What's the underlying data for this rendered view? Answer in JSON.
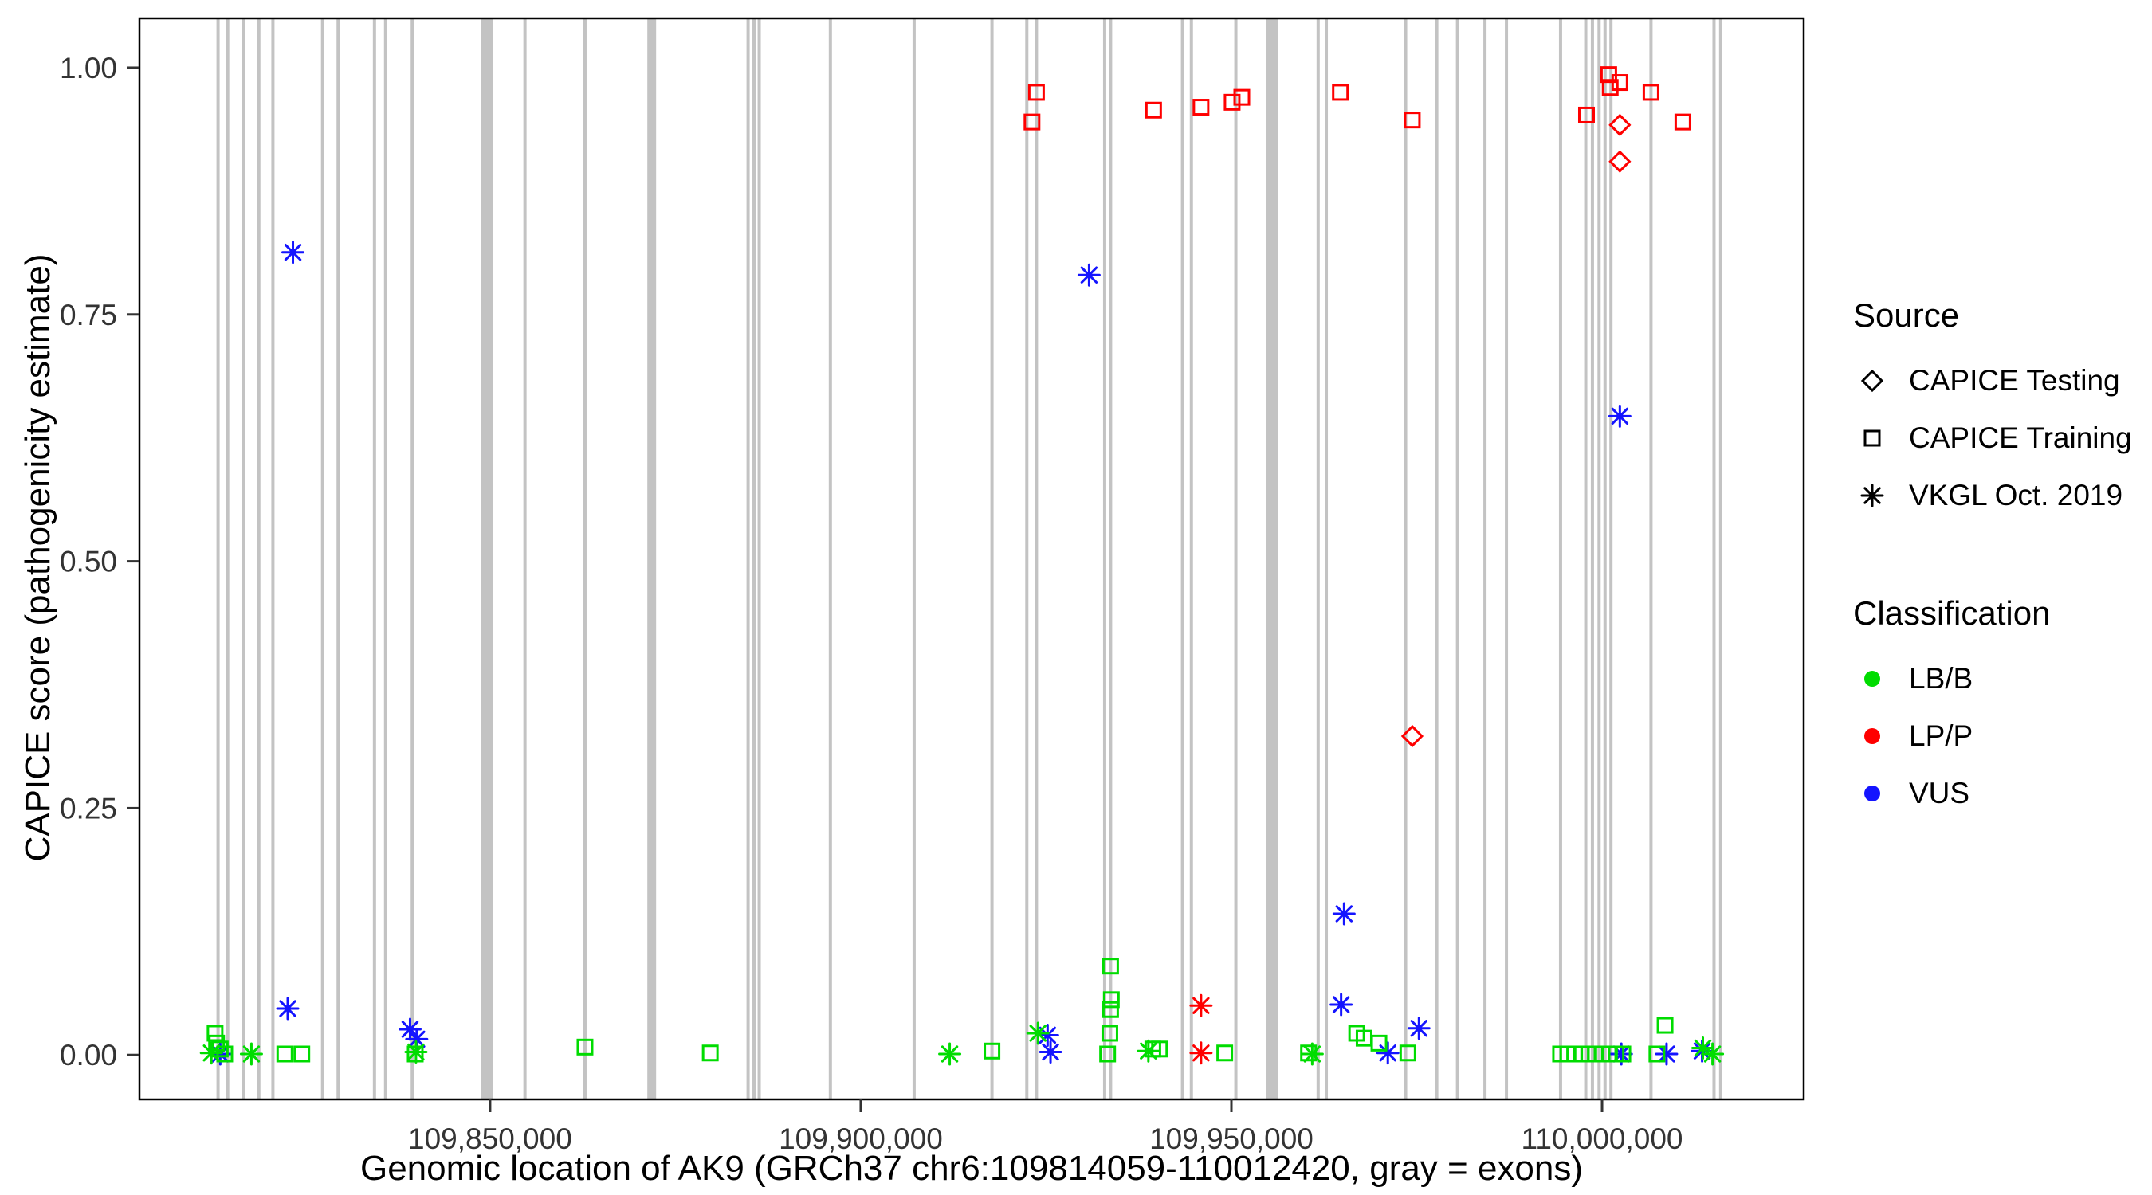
{
  "chart_data": {
    "type": "scatter",
    "title": "",
    "xlabel": "Genomic location of AK9 (GRCh37 chr6:109814059-110012420, gray = exons)",
    "ylabel": "CAPICE score (pathogenicity estimate)",
    "x_domain": [
      109802700,
      110027200
    ],
    "y_domain": [
      -0.045,
      1.05
    ],
    "grid": false,
    "legend_position": "right",
    "x_ticks": [
      {
        "value": 109850000,
        "label": "109,850,000"
      },
      {
        "value": 109900000,
        "label": "109,900,000"
      },
      {
        "value": 109950000,
        "label": "109,950,000"
      },
      {
        "value": 110000000,
        "label": "110,000,000"
      }
    ],
    "y_ticks": [
      {
        "value": 0.0,
        "label": "0.00"
      },
      {
        "value": 0.25,
        "label": "0.25"
      },
      {
        "value": 0.5,
        "label": "0.50"
      },
      {
        "value": 0.75,
        "label": "0.75"
      },
      {
        "value": 1.0,
        "label": "1.00"
      }
    ],
    "exon_color": "#C3C3C3",
    "class_colors": {
      "LB/B": "#00DC00",
      "LP/P": "#FF0000",
      "VUS": "#1414FF"
    },
    "exons": [
      [
        109813300,
        4
      ],
      [
        109814600,
        4
      ],
      [
        109816700,
        4
      ],
      [
        109818800,
        4
      ],
      [
        109820700,
        4
      ],
      [
        109827400,
        4
      ],
      [
        109829500,
        4
      ],
      [
        109834400,
        4
      ],
      [
        109835900,
        4
      ],
      [
        109839500,
        4
      ],
      [
        109849600,
        15
      ],
      [
        109854700,
        4
      ],
      [
        109862800,
        4
      ],
      [
        109871800,
        11
      ],
      [
        109884800,
        4
      ],
      [
        109885600,
        4
      ],
      [
        109886300,
        4
      ],
      [
        109895900,
        4
      ],
      [
        109907200,
        4
      ],
      [
        109917700,
        4
      ],
      [
        109922400,
        4
      ],
      [
        109923700,
        4
      ],
      [
        109932900,
        4
      ],
      [
        109933700,
        4
      ],
      [
        109943400,
        4
      ],
      [
        109944600,
        4
      ],
      [
        109950600,
        4
      ],
      [
        109955500,
        15
      ],
      [
        109961700,
        4
      ],
      [
        109962800,
        4
      ],
      [
        109973500,
        4
      ],
      [
        109977700,
        4
      ],
      [
        109980500,
        4
      ],
      [
        109984200,
        4
      ],
      [
        109987100,
        4
      ],
      [
        109994400,
        4
      ],
      [
        109997800,
        4
      ],
      [
        109998700,
        4
      ],
      [
        109999600,
        4
      ],
      [
        110000400,
        4
      ],
      [
        110001200,
        4
      ],
      [
        110006600,
        4
      ],
      [
        110015100,
        4
      ],
      [
        110016000,
        4
      ]
    ],
    "points": [
      [
        109923700,
        0.975,
        "square",
        "LP/P"
      ],
      [
        109923100,
        0.945,
        "square",
        "LP/P"
      ],
      [
        109939500,
        0.957,
        "square",
        "LP/P"
      ],
      [
        109945900,
        0.96,
        "square",
        "LP/P"
      ],
      [
        109950100,
        0.965,
        "square",
        "LP/P"
      ],
      [
        109951400,
        0.97,
        "square",
        "LP/P"
      ],
      [
        109964700,
        0.975,
        "square",
        "LP/P"
      ],
      [
        109974400,
        0.947,
        "square",
        "LP/P"
      ],
      [
        109997900,
        0.952,
        "square",
        "LP/P"
      ],
      [
        110000900,
        0.993,
        "square",
        "LP/P"
      ],
      [
        110001100,
        0.98,
        "square",
        "LP/P"
      ],
      [
        110002400,
        0.985,
        "square",
        "LP/P"
      ],
      [
        110006600,
        0.975,
        "square",
        "LP/P"
      ],
      [
        110010900,
        0.945,
        "square",
        "LP/P"
      ],
      [
        110002400,
        0.942,
        "diamond",
        "LP/P"
      ],
      [
        110002400,
        0.905,
        "diamond",
        "LP/P"
      ],
      [
        109974400,
        0.323,
        "diamond",
        "LP/P"
      ],
      [
        109945900,
        0.05,
        "asterisk",
        "LP/P"
      ],
      [
        109945900,
        0.002,
        "asterisk",
        "LP/P"
      ],
      [
        109823400,
        0.813,
        "asterisk",
        "VUS"
      ],
      [
        109930800,
        0.79,
        "asterisk",
        "VUS"
      ],
      [
        110002400,
        0.647,
        "asterisk",
        "VUS"
      ],
      [
        109822700,
        0.047,
        "asterisk",
        "VUS"
      ],
      [
        109839200,
        0.026,
        "asterisk",
        "VUS"
      ],
      [
        109840100,
        0.016,
        "asterisk",
        "VUS"
      ],
      [
        109925200,
        0.02,
        "asterisk",
        "VUS"
      ],
      [
        109925600,
        0.003,
        "asterisk",
        "VUS"
      ],
      [
        109965200,
        0.143,
        "asterisk",
        "VUS"
      ],
      [
        109964800,
        0.051,
        "asterisk",
        "VUS"
      ],
      [
        109975300,
        0.027,
        "asterisk",
        "VUS"
      ],
      [
        109971100,
        0.002,
        "asterisk",
        "VUS"
      ],
      [
        110002600,
        0.001,
        "asterisk",
        "VUS"
      ],
      [
        110008700,
        0.001,
        "asterisk",
        "VUS"
      ],
      [
        110013500,
        0.004,
        "asterisk",
        "VUS"
      ],
      [
        109813600,
        0.001,
        "asterisk",
        "VUS"
      ],
      [
        109812900,
        0.022,
        "square",
        "LB/B"
      ],
      [
        109813100,
        0.012,
        "square",
        "LB/B"
      ],
      [
        109813600,
        0.006,
        "square",
        "LB/B"
      ],
      [
        109814200,
        0.001,
        "square",
        "LB/B"
      ],
      [
        109822300,
        0.001,
        "square",
        "LB/B"
      ],
      [
        109824600,
        0.001,
        "square",
        "LB/B"
      ],
      [
        109839900,
        0.001,
        "square",
        "LB/B"
      ],
      [
        109862800,
        0.008,
        "square",
        "LB/B"
      ],
      [
        109879700,
        0.002,
        "square",
        "LB/B"
      ],
      [
        109917700,
        0.004,
        "square",
        "LB/B"
      ],
      [
        109933700,
        0.09,
        "square",
        "LB/B"
      ],
      [
        109933800,
        0.056,
        "square",
        "LB/B"
      ],
      [
        109933700,
        0.046,
        "square",
        "LB/B"
      ],
      [
        109933600,
        0.022,
        "square",
        "LB/B"
      ],
      [
        109933300,
        0.001,
        "square",
        "LB/B"
      ],
      [
        109939400,
        0.006,
        "square",
        "LB/B"
      ],
      [
        109940300,
        0.006,
        "square",
        "LB/B"
      ],
      [
        109949100,
        0.002,
        "square",
        "LB/B"
      ],
      [
        109960400,
        0.002,
        "square",
        "LB/B"
      ],
      [
        109966900,
        0.022,
        "square",
        "LB/B"
      ],
      [
        109967900,
        0.017,
        "square",
        "LB/B"
      ],
      [
        109969900,
        0.012,
        "square",
        "LB/B"
      ],
      [
        109973800,
        0.002,
        "square",
        "LB/B"
      ],
      [
        109994400,
        0.001,
        "square",
        "LB/B"
      ],
      [
        109995400,
        0.001,
        "square",
        "LB/B"
      ],
      [
        109996300,
        0.001,
        "square",
        "LB/B"
      ],
      [
        109997200,
        0.001,
        "square",
        "LB/B"
      ],
      [
        109998200,
        0.001,
        "square",
        "LB/B"
      ],
      [
        109999100,
        0.001,
        "square",
        "LB/B"
      ],
      [
        110000000,
        0.001,
        "square",
        "LB/B"
      ],
      [
        110001000,
        0.001,
        "square",
        "LB/B"
      ],
      [
        110001900,
        0.001,
        "square",
        "LB/B"
      ],
      [
        110002800,
        0.001,
        "square",
        "LB/B"
      ],
      [
        110008500,
        0.03,
        "square",
        "LB/B"
      ],
      [
        110007400,
        0.001,
        "square",
        "LB/B"
      ],
      [
        109812400,
        0.002,
        "asterisk",
        "LB/B"
      ],
      [
        109817800,
        0.001,
        "asterisk",
        "LB/B"
      ],
      [
        109840000,
        0.003,
        "asterisk",
        "LB/B"
      ],
      [
        109912000,
        0.001,
        "asterisk",
        "LB/B"
      ],
      [
        109923900,
        0.022,
        "asterisk",
        "LB/B"
      ],
      [
        109938800,
        0.004,
        "asterisk",
        "LB/B"
      ],
      [
        109960900,
        0.001,
        "asterisk",
        "LB/B"
      ],
      [
        110013600,
        0.007,
        "asterisk",
        "LB/B"
      ],
      [
        110014900,
        0.001,
        "asterisk",
        "LB/B"
      ]
    ],
    "legend": {
      "source_title": "Source",
      "source_items": [
        {
          "shape": "diamond",
          "label": "CAPICE Testing"
        },
        {
          "shape": "square",
          "label": "CAPICE Training"
        },
        {
          "shape": "asterisk",
          "label": "VKGL Oct. 2019"
        }
      ],
      "classification_title": "Classification",
      "classification_items": [
        {
          "color": "#00DC00",
          "label": "LB/B"
        },
        {
          "color": "#FF0000",
          "label": "LP/P"
        },
        {
          "color": "#1414FF",
          "label": "VUS"
        }
      ]
    }
  }
}
